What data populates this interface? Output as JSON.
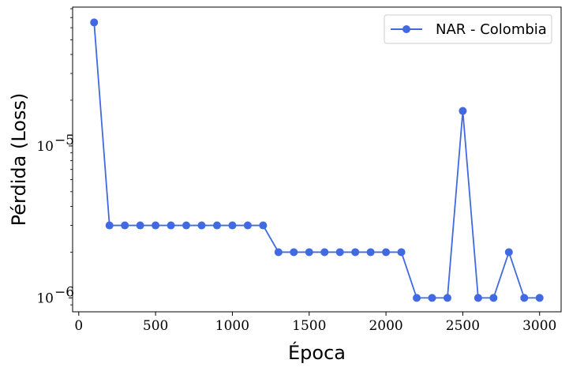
{
  "chart_data": {
    "type": "line",
    "xlabel": "Época",
    "ylabel": "Pérdida (Loss)",
    "yscale": "log",
    "xlim": [
      -40,
      3140
    ],
    "ylim": [
      8.1e-07,
      8.2e-05
    ],
    "x_ticks": [
      0,
      500,
      1000,
      1500,
      2000,
      2500,
      3000
    ],
    "x_tick_labels": [
      "0",
      "500",
      "1000",
      "1500",
      "2000",
      "2500",
      "3000"
    ],
    "y_ticks": [
      1e-06,
      1e-05
    ],
    "y_tick_base": "10",
    "y_tick_exponents": [
      "−6",
      "−5"
    ],
    "grid": false,
    "legend_position": "top-right",
    "color": "#4169E1",
    "series": [
      {
        "name": "NAR - Colombia",
        "x": [
          100,
          200,
          300,
          400,
          500,
          600,
          700,
          800,
          900,
          1000,
          1100,
          1200,
          1300,
          1400,
          1500,
          1600,
          1700,
          1800,
          1900,
          2000,
          2100,
          2200,
          2300,
          2400,
          2500,
          2600,
          2700,
          2800,
          2900,
          3000
        ],
        "y": [
          6.5e-05,
          3e-06,
          3e-06,
          3e-06,
          3e-06,
          3e-06,
          3e-06,
          3e-06,
          3e-06,
          3e-06,
          3e-06,
          3e-06,
          2e-06,
          2e-06,
          2e-06,
          2e-06,
          2e-06,
          2e-06,
          2e-06,
          2e-06,
          2e-06,
          1e-06,
          1e-06,
          1e-06,
          1.7e-05,
          1e-06,
          1e-06,
          2e-06,
          1e-06,
          1e-06
        ]
      }
    ]
  }
}
